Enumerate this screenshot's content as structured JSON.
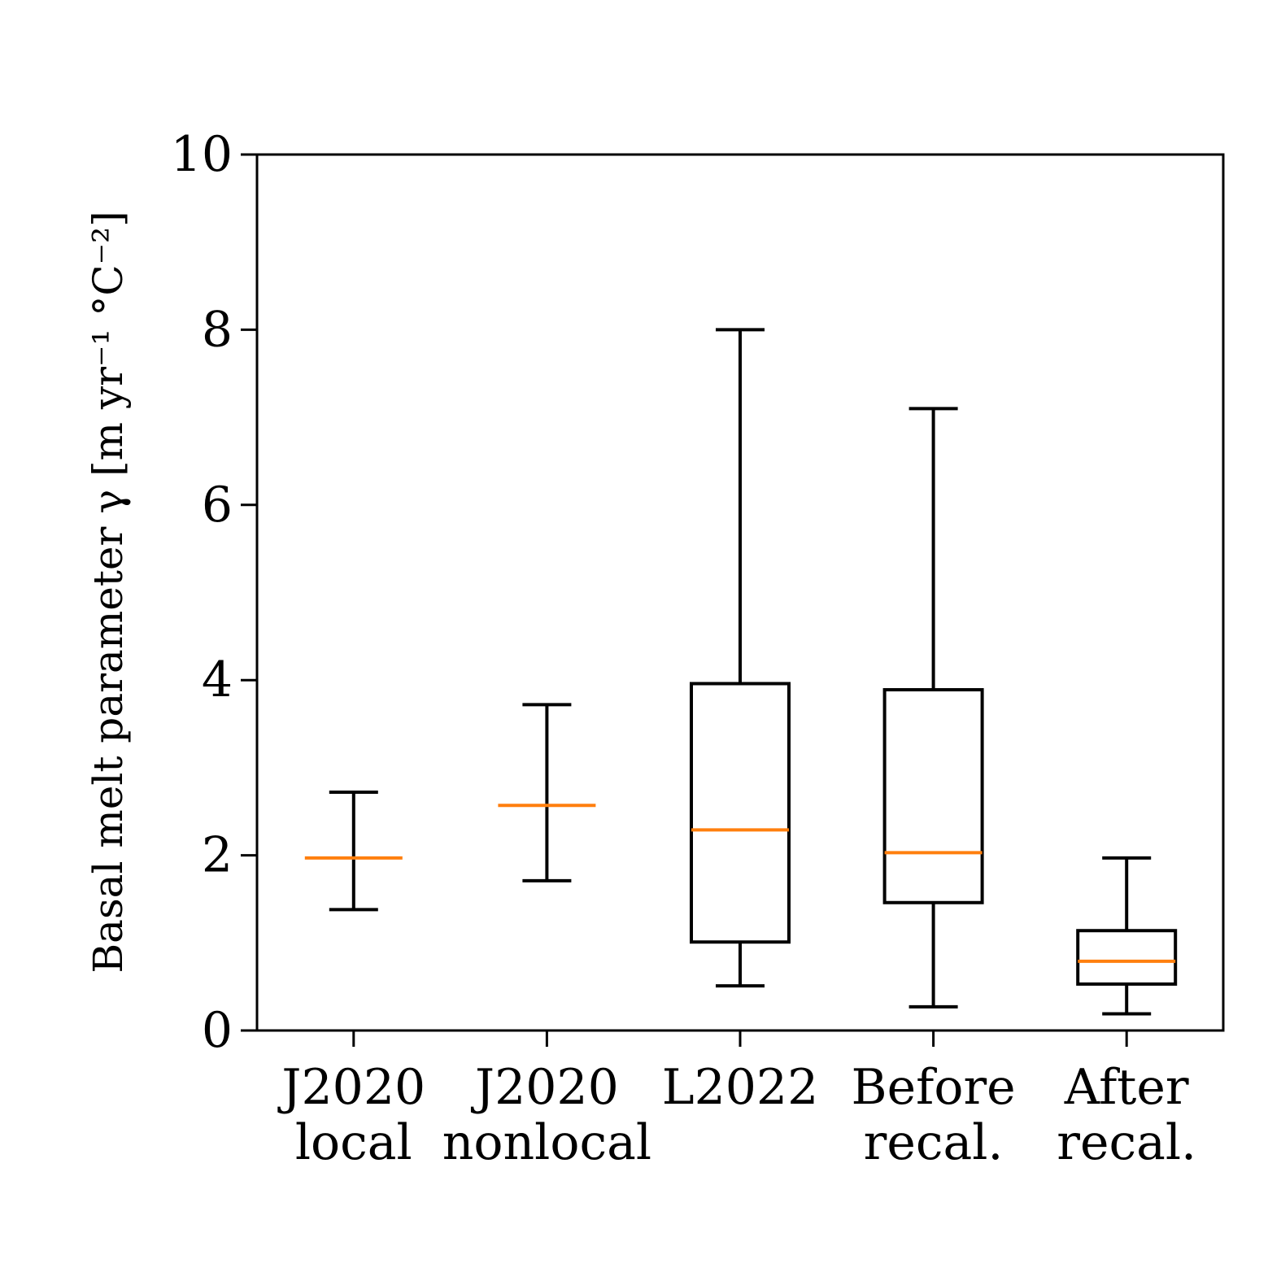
{
  "chart_data": {
    "type": "box",
    "ylabel": "Basal melt parameter γ [m yr⁻¹ °C⁻²]",
    "ylim": [
      0,
      10
    ],
    "yticks": [
      "0",
      "2",
      "4",
      "6",
      "8",
      "10"
    ],
    "grid": false,
    "categories": [
      [
        "J2020",
        "local"
      ],
      [
        "J2020",
        "nonlocal"
      ],
      [
        "L2022"
      ],
      [
        "Before",
        "recal."
      ],
      [
        "After",
        "recal."
      ]
    ],
    "boxes": [
      {
        "whisker_low": 1.38,
        "q1": 1.97,
        "median": 1.97,
        "q3": 1.97,
        "whisker_high": 2.72
      },
      {
        "whisker_low": 1.71,
        "q1": 2.57,
        "median": 2.57,
        "q3": 2.57,
        "whisker_high": 3.72
      },
      {
        "whisker_low": 0.51,
        "q1": 1.01,
        "median": 2.29,
        "q3": 3.96,
        "whisker_high": 8.0
      },
      {
        "whisker_low": 0.27,
        "q1": 1.46,
        "median": 2.03,
        "q3": 3.89,
        "whisker_high": 7.1
      },
      {
        "whisker_low": 0.19,
        "q1": 0.53,
        "median": 0.79,
        "q3": 1.14,
        "whisker_high": 1.97
      }
    ],
    "colors": {
      "box": "#000000",
      "median": "#ff7f0e",
      "axis": "#000000"
    }
  }
}
